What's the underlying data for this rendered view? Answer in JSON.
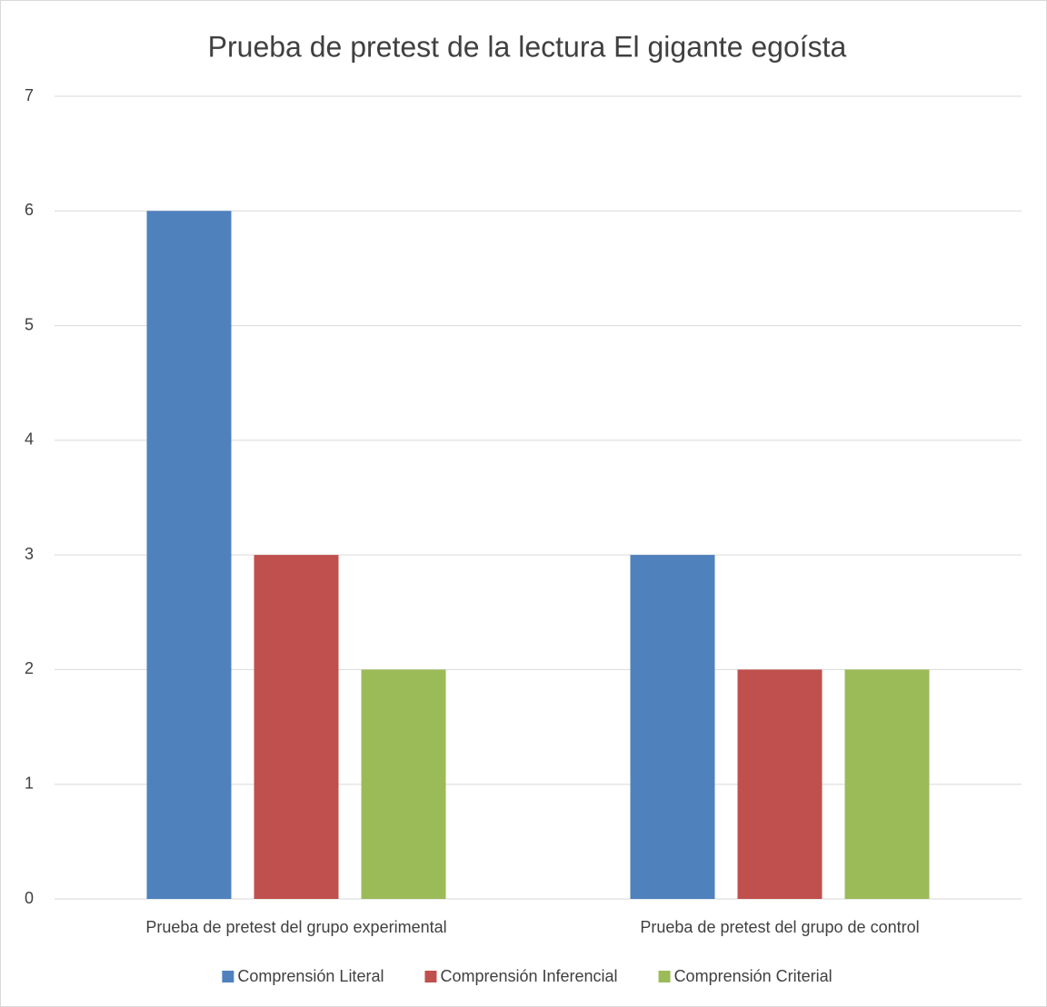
{
  "chart_data": {
    "type": "bar",
    "title": "Prueba de pretest de la lectura El gigante egoísta",
    "categories": [
      "Prueba de pretest del grupo experimental",
      "Prueba de pretest del grupo de control"
    ],
    "series": [
      {
        "name": "Comprensión Literal",
        "color": "#4f81bd",
        "values": [
          6,
          3
        ]
      },
      {
        "name": "Comprensión Inferencial",
        "color": "#c0504d",
        "values": [
          3,
          2
        ]
      },
      {
        "name": "Comprensión Criterial",
        "color": "#9bbb59",
        "values": [
          2,
          2
        ]
      }
    ],
    "ylim": [
      0,
      7
    ],
    "yticks": [
      0,
      1,
      2,
      3,
      4,
      5,
      6,
      7
    ],
    "grid": true,
    "legend": "bottom"
  }
}
